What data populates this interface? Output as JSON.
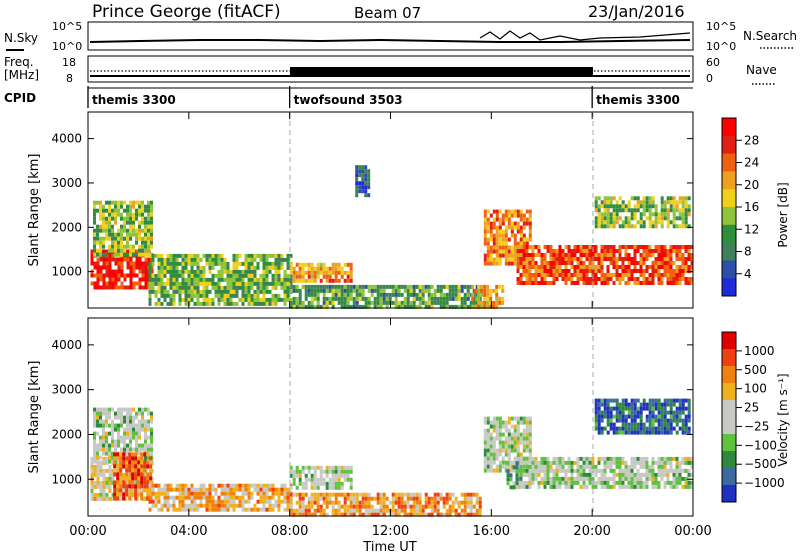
{
  "header": {
    "title": "Prince George (fitACF)",
    "beam": "Beam 07",
    "date": "23/Jan/2016"
  },
  "sky_panel": {
    "left_label": "N.Sky",
    "left_ticks": [
      "10^5",
      "10^0"
    ],
    "right_label": "N.Search",
    "right_ticks": [
      "10^5",
      "10^0"
    ]
  },
  "freq_panel": {
    "left_label_1": "Freq.",
    "left_label_2": "[MHz]",
    "left_ticks": [
      "18",
      "8"
    ],
    "right_label": "Nave",
    "right_ticks": [
      "60",
      "0"
    ]
  },
  "cpid_panel": {
    "label": "CPID",
    "segments": [
      {
        "name": "themis 3300",
        "start_h": 0,
        "end_h": 8
      },
      {
        "name": "twofsound 3503",
        "start_h": 8,
        "end_h": 20
      },
      {
        "name": "themis 3300",
        "start_h": 20,
        "end_h": 24
      }
    ]
  },
  "x_axis": {
    "label": "Time UT",
    "ticks": [
      "00:00",
      "04:00",
      "08:00",
      "12:00",
      "16:00",
      "20:00",
      "00:00"
    ]
  },
  "colors": {
    "power_scale": [
      "#1f2bd9",
      "#2f4fa6",
      "#3f7f5a",
      "#2e8f3a",
      "#8fc33a",
      "#f0d01a",
      "#f0a020",
      "#f06010",
      "#e02010",
      "#ff0000"
    ],
    "velocity_scale": [
      "#2030c0",
      "#3a6aa0",
      "#2e8a3a",
      "#60c040",
      "#c8c8c4",
      "#c8c8c4",
      "#f0b020",
      "#f08010",
      "#f04010",
      "#e00000"
    ]
  },
  "chart_data": [
    {
      "type": "heatmap",
      "name": "power",
      "ylabel": "Slant Range [km]",
      "xlabel": "",
      "x_unit": "hours UT",
      "xlim": [
        0,
        24
      ],
      "ylim": [
        180,
        4600
      ],
      "yticks": [
        "1000",
        "2000",
        "3000",
        "4000"
      ],
      "colorbar": {
        "label": "Power [dB]",
        "ticks": [
          "28",
          "24",
          "20",
          "16",
          "12",
          "8",
          "4"
        ],
        "range": [
          0,
          32
        ]
      },
      "regions": [
        {
          "t0": 0.1,
          "t1": 2.5,
          "r0": 600,
          "r1": 1500,
          "level": 0.9
        },
        {
          "t0": 0.2,
          "t1": 2.5,
          "r0": 1400,
          "r1": 2600,
          "level": 0.45
        },
        {
          "t0": 2.4,
          "t1": 8.0,
          "r0": 300,
          "r1": 1400,
          "level": 0.4
        },
        {
          "t0": 8.0,
          "t1": 10.4,
          "r0": 800,
          "r1": 1200,
          "level": 0.65
        },
        {
          "t0": 8.0,
          "t1": 15.5,
          "r0": 200,
          "r1": 700,
          "level": 0.35
        },
        {
          "t0": 15.2,
          "t1": 16.5,
          "r0": 200,
          "r1": 700,
          "level": 0.6
        },
        {
          "t0": 15.7,
          "t1": 17.5,
          "r0": 1200,
          "r1": 2400,
          "level": 0.7
        },
        {
          "t0": 17.0,
          "t1": 24.0,
          "r0": 700,
          "r1": 1600,
          "level": 0.8
        },
        {
          "t0": 20.1,
          "t1": 23.8,
          "r0": 2000,
          "r1": 2700,
          "level": 0.45
        },
        {
          "t0": 10.6,
          "t1": 11.1,
          "r0": 2700,
          "r1": 3400,
          "level": 0.2
        }
      ]
    },
    {
      "type": "heatmap",
      "name": "velocity",
      "ylabel": "Slant Range [km]",
      "xlabel": "Time UT",
      "x_unit": "hours UT",
      "xlim": [
        0,
        24
      ],
      "ylim": [
        180,
        4600
      ],
      "yticks": [
        "1000",
        "2000",
        "3000",
        "4000"
      ],
      "colorbar": {
        "label": "Velocity [m s⁻¹]",
        "ticks": [
          "1000",
          "500",
          "100",
          "25",
          "−25",
          "−100",
          "−500",
          "−1000"
        ],
        "range": [
          -1200,
          1200
        ]
      },
      "regions": [
        {
          "t0": 0.1,
          "t1": 2.5,
          "r0": 600,
          "r1": 1500,
          "level": 0.55
        },
        {
          "t0": 0.2,
          "t1": 2.5,
          "r0": 1400,
          "r1": 2600,
          "level": 0.45
        },
        {
          "t0": 1.0,
          "t1": 2.5,
          "r0": 600,
          "r1": 1600,
          "level": 0.8
        },
        {
          "t0": 2.4,
          "t1": 8.0,
          "r0": 300,
          "r1": 900,
          "level": 0.65
        },
        {
          "t0": 8.0,
          "t1": 10.4,
          "r0": 800,
          "r1": 1300,
          "level": 0.45
        },
        {
          "t0": 8.0,
          "t1": 15.5,
          "r0": 200,
          "r1": 700,
          "level": 0.7
        },
        {
          "t0": 15.7,
          "t1": 17.5,
          "r0": 1200,
          "r1": 2400,
          "level": 0.45
        },
        {
          "t0": 17.0,
          "t1": 24.0,
          "r0": 800,
          "r1": 1500,
          "level": 0.45
        },
        {
          "t0": 20.1,
          "t1": 23.8,
          "r0": 2000,
          "r1": 2800,
          "level": 0.15
        },
        {
          "t0": 16.6,
          "t1": 17.0,
          "r0": 800,
          "r1": 1400,
          "level": 0.3
        }
      ]
    }
  ]
}
